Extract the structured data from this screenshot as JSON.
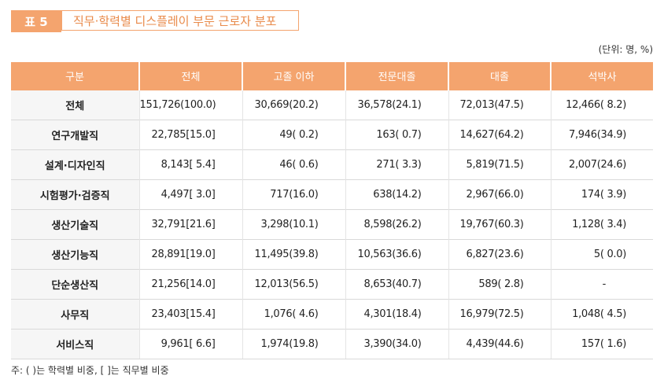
{
  "title": {
    "badge": "표 5",
    "text": "직무·학력별 디스플레이 부문 근로자 분포"
  },
  "unit": "(단위: 명, %)",
  "columns": [
    "구분",
    "전체",
    "고졸 이하",
    "전문대졸",
    "대졸",
    "석박사"
  ],
  "rows": [
    {
      "label": "전체",
      "values": [
        "151,726(100.0)",
        "30,669(20.2)",
        "36,578(24.1)",
        "72,013(47.5)",
        "12,466( 8.2)"
      ]
    },
    {
      "label": "연구개발직",
      "values": [
        "22,785[15.0]",
        "49( 0.2)",
        "163( 0.7)",
        "14,627(64.2)",
        "7,946(34.9)"
      ]
    },
    {
      "label": "설계·디자인직",
      "values": [
        "8,143[ 5.4]",
        "46( 0.6)",
        "271( 3.3)",
        "5,819(71.5)",
        "2,007(24.6)"
      ]
    },
    {
      "label": "시험평가·검증직",
      "values": [
        "4,497[ 3.0]",
        "717(16.0)",
        "638(14.2)",
        "2,967(66.0)",
        "174( 3.9)"
      ]
    },
    {
      "label": "생산기술직",
      "values": [
        "32,791[21.6]",
        "3,298(10.1)",
        "8,598(26.2)",
        "19,767(60.3)",
        "1,128( 3.4)"
      ]
    },
    {
      "label": "생산기능직",
      "values": [
        "28,891[19.0]",
        "11,495(39.8)",
        "10,563(36.6)",
        "6,827(23.6)",
        "5( 0.0)"
      ]
    },
    {
      "label": "단순생산직",
      "values": [
        "21,256[14.0]",
        "12,013(56.5)",
        "8,653(40.7)",
        "589( 2.8)",
        "-"
      ]
    },
    {
      "label": "사무직",
      "values": [
        "23,403[15.4]",
        "1,076( 4.6)",
        "4,301(18.4)",
        "16,979(72.5)",
        "1,048( 4.5)"
      ]
    },
    {
      "label": "서비스직",
      "values": [
        "9,961[ 6.6]",
        "1,974(19.8)",
        "3,390(34.0)",
        "4,439(44.6)",
        "157( 1.6)"
      ]
    }
  ],
  "note": "주: ( )는 학력별 비중, [ ]는 직무별 비중",
  "colors": {
    "accent": "#f4a46e",
    "title_text": "#e98a4a",
    "label_bg": "#f6f6f6"
  }
}
